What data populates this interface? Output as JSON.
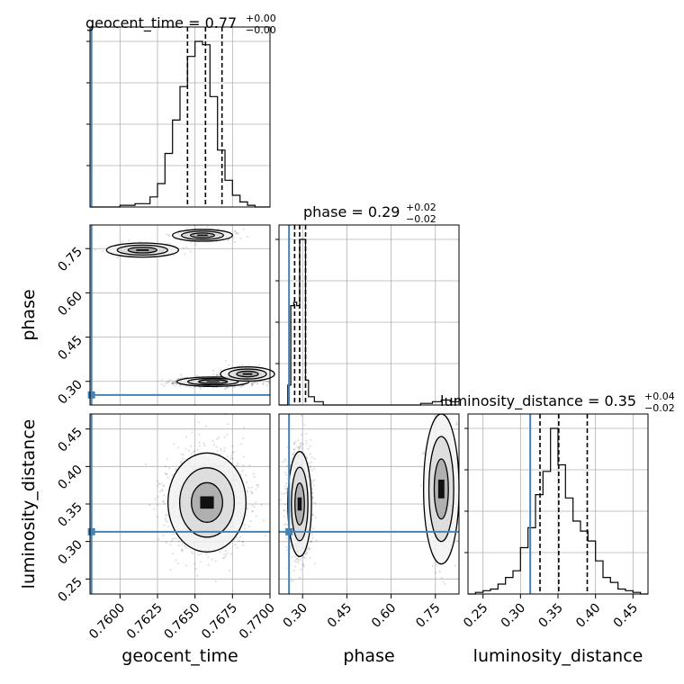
{
  "chart_data": {
    "type": "corner",
    "parameters": [
      "geocent_time",
      "phase",
      "luminosity_distance"
    ],
    "axis_labels": [
      "geocent_time",
      "phase",
      "luminosity_distance"
    ],
    "truth_color": "#4682b4",
    "truths": {
      "geocent_time": 0.7581,
      "phase": 0.254,
      "luminosity_distance": 0.313
    },
    "titles": [
      {
        "param": "geocent_time",
        "text": "geocent_time = 0.77",
        "plus": "+0.00",
        "minus": "−0.00"
      },
      {
        "param": "phase",
        "text": "phase = 0.29",
        "plus": "+0.02",
        "minus": "−0.02"
      },
      {
        "param": "luminosity_distance",
        "text": "luminosity_distance = 0.35",
        "plus": "+0.04",
        "minus": "−0.02"
      }
    ],
    "ranges": {
      "geocent_time": [
        0.758,
        0.77
      ],
      "phase": [
        0.22,
        0.83
      ],
      "luminosity_distance": [
        0.23,
        0.47
      ]
    },
    "ticks": {
      "geocent_time": [
        "0.7600",
        "0.7625",
        "0.7650",
        "0.7675",
        "0.7700"
      ],
      "phase": [
        "0.30",
        "0.45",
        "0.60",
        "0.75"
      ],
      "luminosity_distance": [
        "0.25",
        "0.30",
        "0.35",
        "0.40",
        "0.45"
      ]
    },
    "marginals": {
      "geocent_time": {
        "bin_edges": [
          0.758,
          0.759,
          0.76,
          0.761,
          0.762,
          0.7625,
          0.763,
          0.7635,
          0.764,
          0.7645,
          0.765,
          0.7655,
          0.766,
          0.7665,
          0.767,
          0.7675,
          0.768,
          0.7685,
          0.769,
          0.7695,
          0.77
        ],
        "counts": [
          0,
          0,
          1,
          2,
          6,
          14,
          32,
          52,
          72,
          90,
          99,
          97,
          66,
          34,
          16,
          7,
          3,
          1,
          0,
          0
        ],
        "quantiles": [
          0.7645,
          0.7657,
          0.7668
        ]
      },
      "phase": {
        "bin_edges": [
          0.22,
          0.25,
          0.26,
          0.27,
          0.28,
          0.29,
          0.3,
          0.31,
          0.32,
          0.34,
          0.37,
          0.4,
          0.5,
          0.6,
          0.7,
          0.74,
          0.77,
          0.8,
          0.83
        ],
        "counts": [
          0,
          12,
          60,
          62,
          60,
          100,
          100,
          15,
          5,
          2,
          0,
          0,
          0,
          0,
          1,
          2,
          3,
          2
        ],
        "quantiles": [
          0.273,
          0.29,
          0.31
        ]
      },
      "luminosity_distance": {
        "bin_edges": [
          0.23,
          0.24,
          0.25,
          0.26,
          0.27,
          0.28,
          0.29,
          0.3,
          0.31,
          0.32,
          0.33,
          0.34,
          0.35,
          0.36,
          0.37,
          0.38,
          0.39,
          0.4,
          0.41,
          0.42,
          0.43,
          0.44,
          0.45,
          0.46,
          0.47
        ],
        "counts": [
          0,
          1,
          2,
          3,
          6,
          10,
          14,
          28,
          40,
          60,
          74,
          100,
          78,
          58,
          44,
          38,
          32,
          20,
          10,
          7,
          3,
          2,
          1,
          0
        ],
        "quantiles": [
          0.326,
          0.351,
          0.389
        ]
      }
    },
    "density_clusters": {
      "phase_vs_geocent_time": [
        {
          "weight": 0.6,
          "cx": 0.7662,
          "cy": 0.299,
          "sx": 0.0012,
          "sy": 0.008
        },
        {
          "weight": 0.15,
          "cx": 0.7685,
          "cy": 0.325,
          "sx": 0.0009,
          "sy": 0.012
        },
        {
          "weight": 0.15,
          "cx": 0.7655,
          "cy": 0.795,
          "sx": 0.001,
          "sy": 0.01
        },
        {
          "weight": 0.1,
          "cx": 0.7615,
          "cy": 0.745,
          "sx": 0.0012,
          "sy": 0.012
        }
      ],
      "luminosity_distance_vs_geocent_time": [
        {
          "weight": 1.0,
          "cx": 0.7658,
          "cy": 0.352,
          "sx": 0.0013,
          "sy": 0.033
        }
      ],
      "luminosity_distance_vs_phase": [
        {
          "weight": 0.82,
          "cx": 0.29,
          "cy": 0.35,
          "sx": 0.02,
          "sy": 0.035
        },
        {
          "weight": 0.18,
          "cx": 0.77,
          "cy": 0.37,
          "sx": 0.03,
          "sy": 0.05
        }
      ]
    },
    "grid": true,
    "legend": "none"
  }
}
